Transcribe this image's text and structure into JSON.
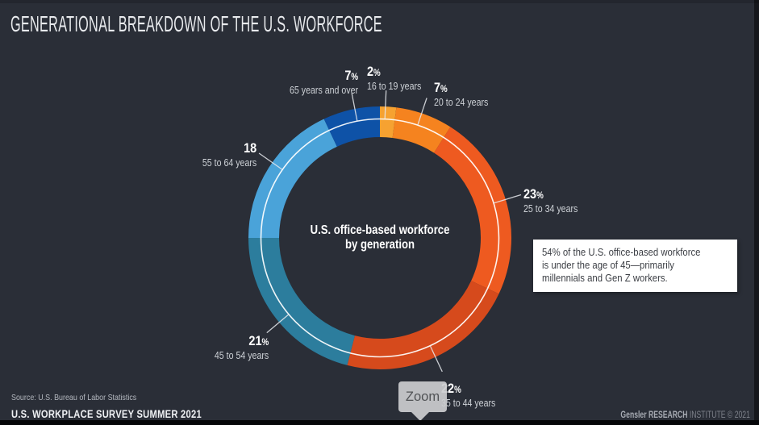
{
  "page": {
    "title": "GENERATIONAL BREAKDOWN OF THE U.S. WORKFORCE",
    "source": "Source: U.S. Bureau of Labor Statistics",
    "footer_left": "U.S. WORKPLACE SURVEY SUMMER 2021",
    "footer_right_brand": "Gensler RESEARCH",
    "footer_right_rest": " INSTITUTE © 2021"
  },
  "colors": {
    "background": "#2A2E37",
    "ring_line": "#FFFFFF",
    "label_percent": "#FFFFFF",
    "label_range": "#CDD1D6",
    "callout_bg": "#FFFFFF",
    "callout_text": "#3C3F45"
  },
  "chart_data": {
    "type": "pie",
    "subtype": "donut",
    "title": "U.S. office-based workforce by generation",
    "center_label_lines": [
      "U.S. office-based workforce",
      "by generation"
    ],
    "start_angle_deg": 0,
    "direction": "clockwise",
    "total_percent": 100,
    "legend_position": "callout-labels-around-ring",
    "segments": [
      {
        "id": "s1619",
        "label": "16 to 19 years",
        "value": 2,
        "value_text": "2",
        "percent_sign": "%",
        "color": "#F6A231"
      },
      {
        "id": "s2024",
        "label": "20 to 24 years",
        "value": 7,
        "value_text": "7",
        "percent_sign": "%",
        "color": "#F5831F"
      },
      {
        "id": "s2534",
        "label": "25 to 34 years",
        "value": 23,
        "value_text": "23",
        "percent_sign": "%",
        "color": "#EE5A20"
      },
      {
        "id": "s3544",
        "label": "35 to 44 years",
        "value": 22,
        "value_text": "22",
        "percent_sign": "%",
        "color": "#D64A1C"
      },
      {
        "id": "s4554",
        "label": "45 to 54 years",
        "value": 21,
        "value_text": "21",
        "percent_sign": "%",
        "color": "#2C7D9D"
      },
      {
        "id": "s5564",
        "label": "55 to 64 years",
        "value": 18,
        "value_text": "18",
        "percent_sign": "",
        "color": "#4AA3D9"
      },
      {
        "id": "s65over",
        "label": "65 years and over",
        "value": 7,
        "value_text": "7",
        "percent_sign": "%",
        "color": "#0E52A7"
      }
    ]
  },
  "callout": {
    "lines": [
      "54% of the U.S. office-based workforce",
      "is under the age of 45—primarily",
      "millennials and Gen Z workers."
    ]
  },
  "cursor_tooltip": {
    "label": "Zoom"
  }
}
